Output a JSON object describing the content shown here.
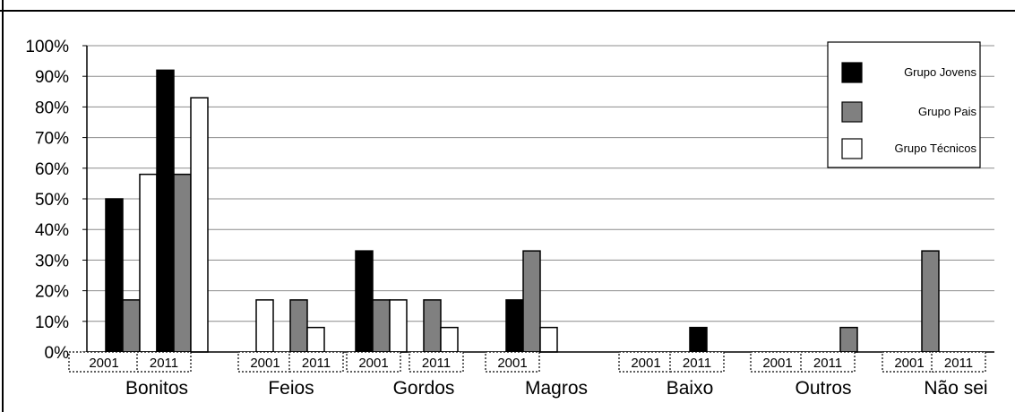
{
  "chart_data": {
    "type": "bar",
    "ylim": [
      0,
      100
    ],
    "y_ticks": [
      "0%",
      "10%",
      "20%",
      "30%",
      "40%",
      "50%",
      "60%",
      "70%",
      "80%",
      "90%",
      "100%"
    ],
    "grid": true,
    "legend_position": "top-right",
    "series": [
      {
        "name": "Grupo Jovens",
        "color": "#000000"
      },
      {
        "name": "Grupo Pais",
        "color": "#808080"
      },
      {
        "name": "Grupo Técnicos",
        "color": "#ffffff"
      }
    ],
    "categories": [
      {
        "label": "Bonitos",
        "years": [
          {
            "year": "2001",
            "values": [
              50,
              17,
              58
            ]
          },
          {
            "year": "2011",
            "values": [
              92,
              58,
              83
            ]
          }
        ]
      },
      {
        "label": "Feios",
        "years": [
          {
            "year": "2001",
            "values": [
              0,
              0,
              17
            ]
          },
          {
            "year": "2011",
            "values": [
              0,
              17,
              8
            ]
          }
        ]
      },
      {
        "label": "Gordos",
        "years": [
          {
            "year": "2001",
            "values": [
              33,
              17,
              17
            ]
          },
          {
            "year": "2011",
            "values": [
              0,
              17,
              8
            ]
          }
        ]
      },
      {
        "label": "Magros",
        "years": [
          {
            "year": "2001",
            "values": [
              17,
              33,
              8
            ]
          }
        ]
      },
      {
        "label": "Baixo",
        "years": [
          {
            "year": "2001",
            "values": [
              0,
              0,
              0
            ]
          },
          {
            "year": "2011",
            "values": [
              8,
              0,
              0
            ]
          }
        ]
      },
      {
        "label": "Outros",
        "years": [
          {
            "year": "2001",
            "values": [
              0,
              0,
              0
            ]
          },
          {
            "year": "2011",
            "values": [
              0,
              8,
              0
            ]
          }
        ]
      },
      {
        "label": "Não sei",
        "years": [
          {
            "year": "2001",
            "values": [
              0,
              33,
              0
            ]
          },
          {
            "year": "2011",
            "values": [
              0,
              0,
              0
            ]
          }
        ]
      }
    ]
  }
}
